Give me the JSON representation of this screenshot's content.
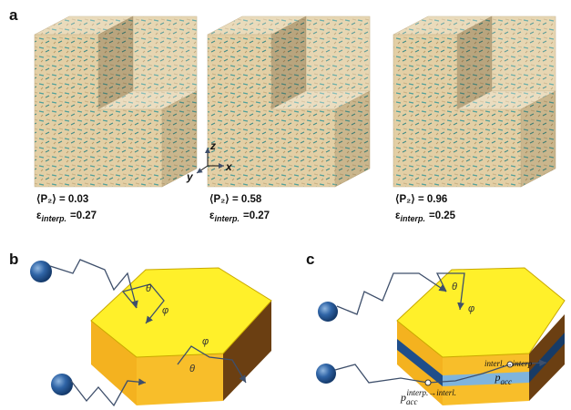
{
  "panel_a": {
    "label": "a",
    "axes": {
      "z": "z",
      "y": "y",
      "x": "x"
    },
    "samples": [
      {
        "p2": "⟨P₂⟩ = 0.03",
        "eps": "ε",
        "eps_sub": "interp.",
        "eps_value": "=0.27"
      },
      {
        "p2": "⟨P₂⟩ = 0.58",
        "eps": "ε",
        "eps_sub": "interp.",
        "eps_value": "=0.27"
      },
      {
        "p2": "⟨P₂⟩ = 0.96",
        "eps": "ε",
        "eps_sub": "interp.",
        "eps_value": "=0.25"
      }
    ]
  },
  "panel_b": {
    "label": "b",
    "theta": "θ",
    "phi": "φ"
  },
  "panel_c": {
    "label": "c",
    "theta": "θ",
    "phi": "φ",
    "p_acc": [
      {
        "p": "p",
        "sub": "acc",
        "sup": "interp.→interl."
      },
      {
        "p": "p",
        "sub": "acc",
        "sup": "interl.→interp"
      }
    ]
  }
}
